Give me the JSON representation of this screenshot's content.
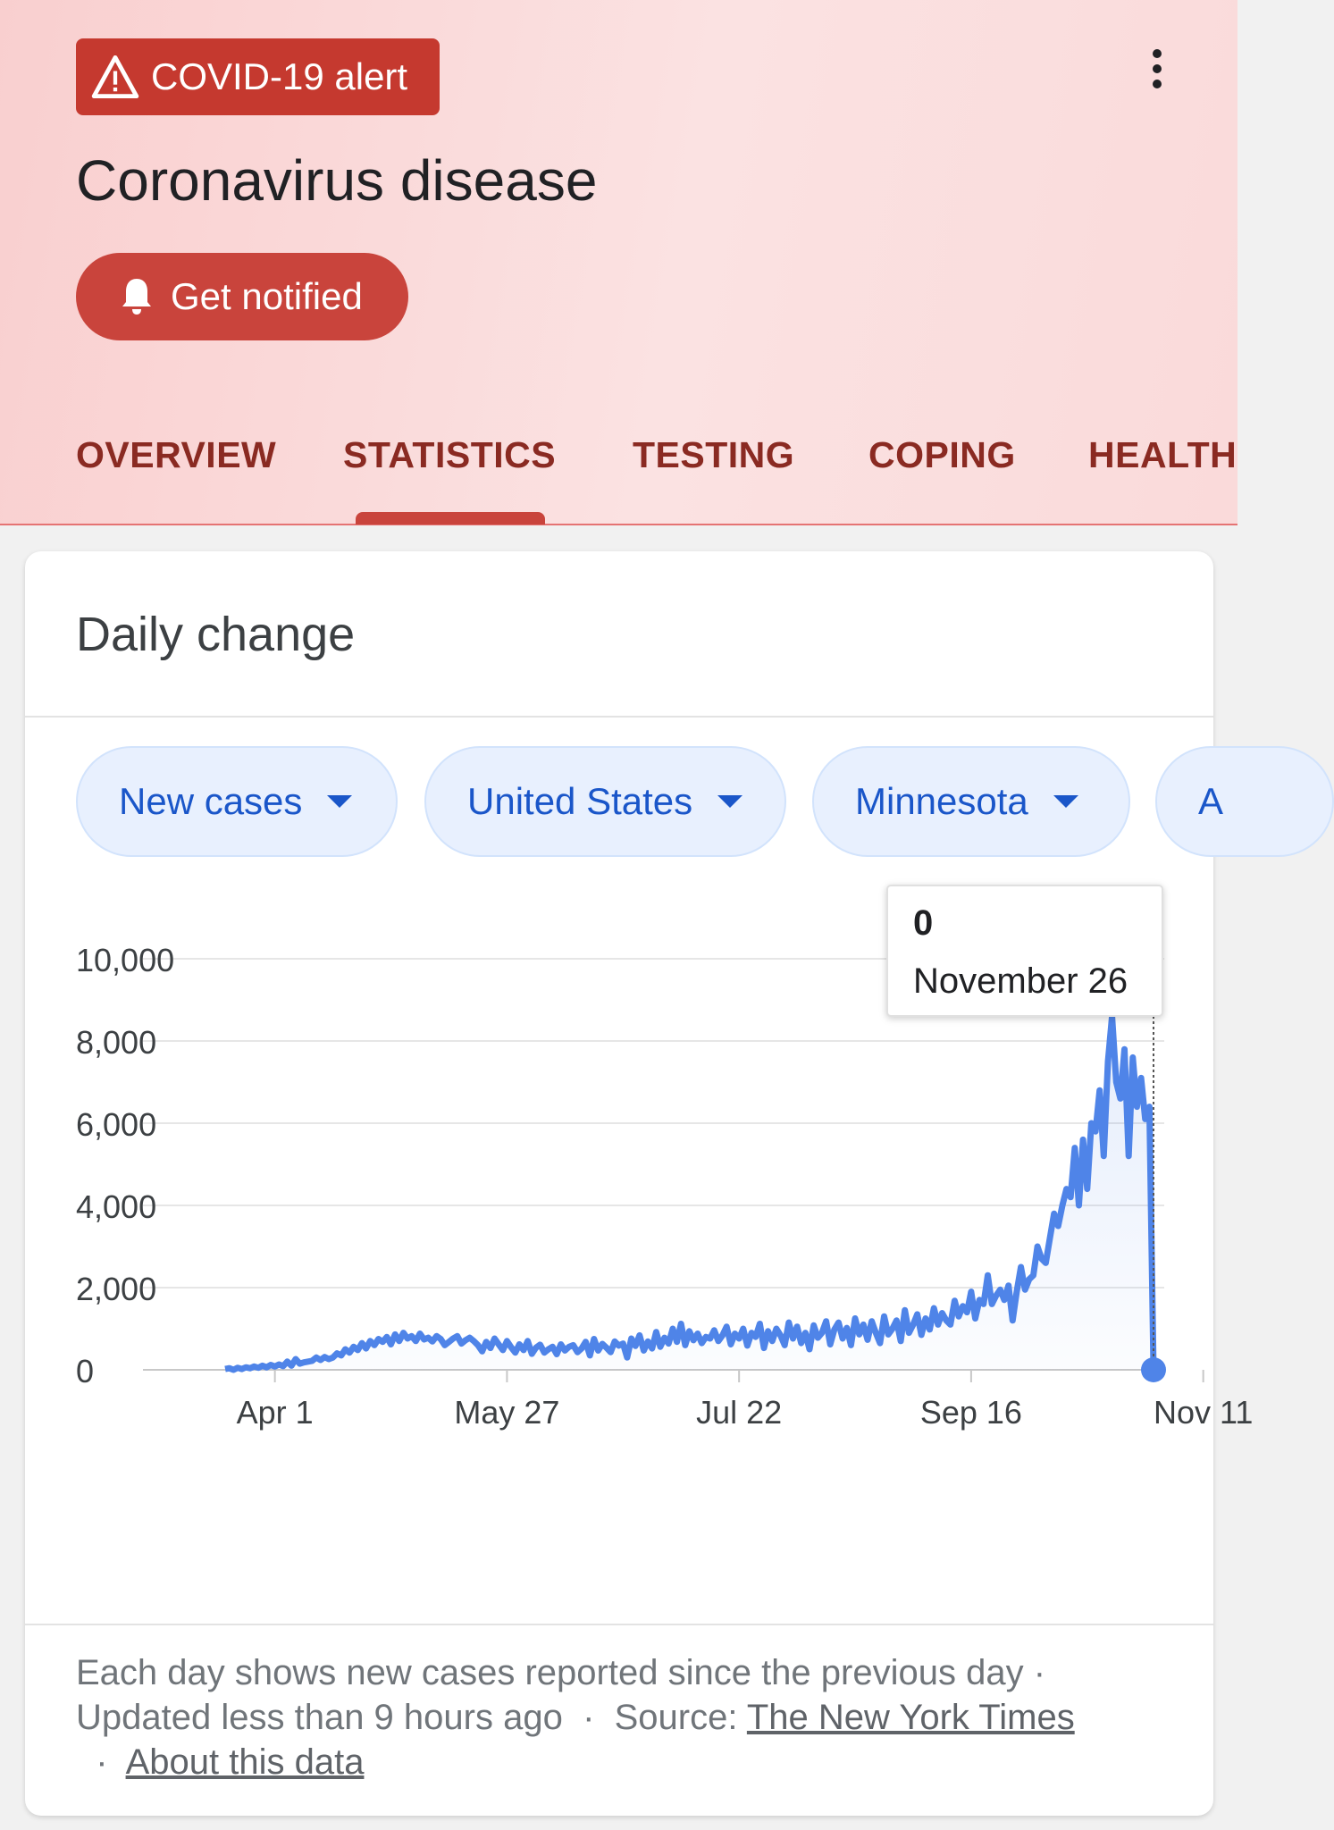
{
  "header": {
    "alert_label": "COVID-19 alert",
    "title": "Coronavirus disease",
    "notify_label": "Get notified"
  },
  "tabs": [
    {
      "label": "OVERVIEW"
    },
    {
      "label": "STATISTICS",
      "selected": true
    },
    {
      "label": "TESTING"
    },
    {
      "label": "COPING"
    },
    {
      "label": "HEALTH"
    }
  ],
  "card": {
    "title": "Daily change",
    "chips": [
      {
        "label": "New cases"
      },
      {
        "label": "United States"
      },
      {
        "label": "Minnesota"
      },
      {
        "label": "A"
      }
    ],
    "footer": {
      "line1": "Each day shows new cases reported since the previous day ·",
      "updated": "Updated less than 9 hours ago",
      "source_prefix": "Source:",
      "source_link": "The New York Times",
      "about_link": "About this data"
    }
  },
  "colors": {
    "accent": "#c9443c",
    "line": "#4f84e8",
    "chip_text": "#1a56c9"
  },
  "chart_data": {
    "type": "line",
    "ylim": [
      0,
      10000
    ],
    "y_ticks": [
      "10,000",
      "8,000",
      "6,000",
      "4,000",
      "2,000",
      "0"
    ],
    "x_ticks": [
      "Apr 1",
      "May 27",
      "Jul 22",
      "Sep 16",
      "Nov 11"
    ],
    "x_tick_days": [
      0,
      56,
      112,
      168,
      224
    ],
    "tooltip": {
      "value": "0",
      "date": "November 26"
    },
    "series": [
      {
        "start_day": -12,
        "values": [
          20,
          40,
          0,
          50,
          20,
          60,
          40,
          80,
          50,
          100,
          60,
          120,
          80,
          130,
          90,
          200,
          100,
          260,
          150,
          180,
          200,
          220,
          300,
          240,
          310,
          260,
          300,
          400,
          350,
          500,
          420,
          560,
          480,
          650,
          520,
          700,
          600,
          750,
          680,
          800,
          620,
          860,
          700,
          900,
          760,
          820,
          700,
          880,
          740,
          780,
          690,
          820,
          750,
          600,
          680,
          760,
          820,
          640,
          720,
          780,
          700,
          600,
          450,
          680,
          530,
          760,
          620,
          480,
          700,
          550,
          420,
          620,
          480,
          700,
          390,
          540,
          610,
          420,
          500,
          560,
          380,
          620,
          470,
          560,
          600,
          430,
          520,
          680,
          350,
          750,
          470,
          630,
          540,
          430,
          690,
          590,
          640,
          300,
          760,
          580,
          840,
          470,
          690,
          520,
          920,
          560,
          780,
          640,
          1000,
          680,
          1120,
          600,
          940,
          720,
          880,
          650,
          800,
          760,
          960,
          700,
          840,
          1050,
          620,
          880,
          760,
          1000,
          590,
          900,
          800,
          1120,
          530,
          940,
          700,
          1000,
          840,
          600,
          1150,
          760,
          1050,
          650,
          900,
          500,
          1080,
          780,
          900,
          1180,
          620,
          980,
          1150,
          760,
          1020,
          600,
          1250,
          860,
          1100,
          730,
          1180,
          900,
          650,
          1300,
          860,
          1000,
          1200,
          700,
          1450,
          900,
          1100,
          1350,
          850,
          1250,
          980,
          1500,
          1100,
          1380,
          1200,
          1100,
          1680,
          1300,
          1550,
          1400,
          1900,
          1250,
          1700,
          1600,
          2300,
          1600,
          1800,
          1950,
          1700,
          2050,
          1200,
          1900,
          2500,
          1950,
          2200,
          2300,
          3000,
          2700,
          2600,
          3200,
          3800,
          3500,
          4000,
          4400,
          4200,
          5400,
          4000,
          5600,
          4400,
          6000,
          5800,
          6800,
          5200,
          7500,
          8600,
          7000,
          6600,
          7800,
          5200,
          7600,
          6400,
          7100,
          6100,
          6400,
          0
        ]
      }
    ]
  }
}
